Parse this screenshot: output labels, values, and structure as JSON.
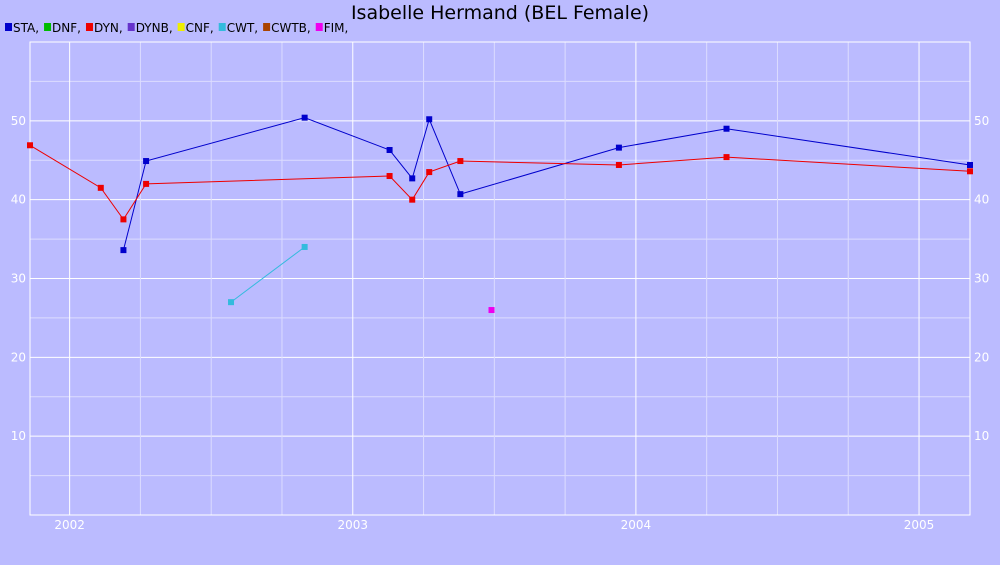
{
  "chart_data": {
    "type": "line",
    "title": "Isabelle Hermand (BEL Female)",
    "xlabel": "",
    "ylabel": "",
    "xlim": [
      2001.86,
      2005.18
    ],
    "ylim": [
      0,
      60
    ],
    "x_ticks": [
      2002,
      2003,
      2004,
      2005
    ],
    "x_tick_labels": [
      "2002",
      "2003",
      "2004",
      "2005"
    ],
    "y_ticks": [
      10,
      20,
      30,
      40,
      50
    ],
    "y_tick_labels": [
      "10",
      "20",
      "30",
      "40",
      "50"
    ],
    "grid": true,
    "legend_position": "top-left",
    "background": "#bbbbff",
    "legend": [
      {
        "label": "STA,",
        "color": "#0000cc"
      },
      {
        "label": "DNF,",
        "color": "#00bb00"
      },
      {
        "label": "DYN,",
        "color": "#ee0000"
      },
      {
        "label": "DYNB,",
        "color": "#6633cc"
      },
      {
        "label": "CNF,",
        "color": "#eeee00"
      },
      {
        "label": "CWT,",
        "color": "#33bbdd"
      },
      {
        "label": "CWTB,",
        "color": "#aa4400"
      },
      {
        "label": "FIM,",
        "color": "#ee00ee"
      }
    ],
    "series": [
      {
        "name": "STA",
        "color": "#0000cc",
        "x": [
          2002.19,
          2002.27,
          2002.83,
          2003.13,
          2003.21,
          2003.27,
          2003.38,
          2003.94,
          2004.32,
          2005.18
        ],
        "y": [
          33.6,
          44.9,
          50.4,
          46.3,
          42.7,
          50.2,
          40.7,
          46.6,
          49.0,
          44.4
        ]
      },
      {
        "name": "DYN",
        "color": "#ee0000",
        "x": [
          2001.86,
          2002.11,
          2002.19,
          2002.27,
          2003.13,
          2003.21,
          2003.27,
          2003.38,
          2003.94,
          2004.32,
          2005.18
        ],
        "y": [
          46.9,
          41.5,
          37.5,
          42.0,
          43.0,
          40.0,
          43.5,
          44.9,
          44.4,
          45.4,
          43.6
        ]
      },
      {
        "name": "CWT",
        "color": "#33bbdd",
        "x": [
          2002.57,
          2002.83
        ],
        "y": [
          27.0,
          34.0
        ]
      },
      {
        "name": "FIM",
        "color": "#ee00ee",
        "x": [
          2003.49
        ],
        "y": [
          26.0
        ]
      }
    ]
  }
}
